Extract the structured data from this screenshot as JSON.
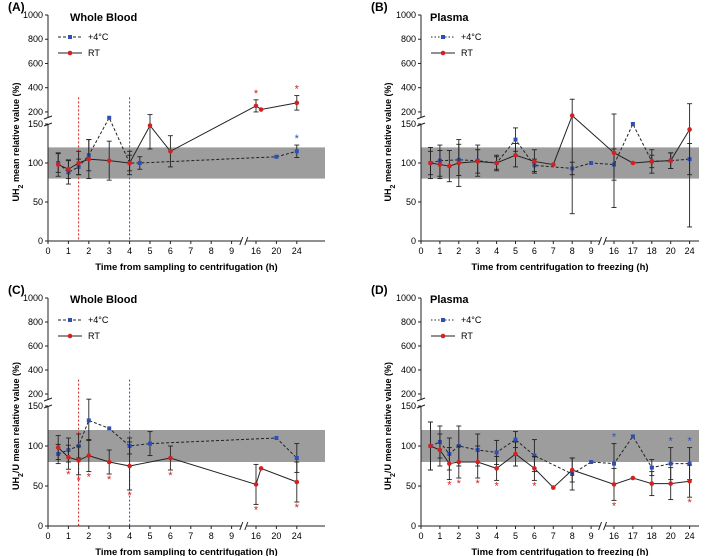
{
  "colors": {
    "blue": "#2f4fb5",
    "red": "#d42020",
    "band": "#9d9d9d",
    "line": "#222222"
  },
  "chart_data": [
    {
      "panel": "(A)",
      "title": "Whole Blood",
      "type": "line",
      "ylabel_main": "UH",
      "ylabel_sub": "2",
      "ylabel_rest": " mean relative value (%)",
      "xlabel": "Time from sampling to centrifugation (h)",
      "yticks_low": [
        "0",
        "50",
        "100",
        "150"
      ],
      "yticks_high": [
        "200",
        "400",
        "600",
        "800",
        "1000"
      ],
      "xticks": [
        "0",
        "1",
        "2",
        "3",
        "4",
        "5",
        "6",
        "7",
        "8",
        "9",
        "16",
        "20",
        "24"
      ],
      "legend": [
        "+4°C",
        "RT"
      ],
      "legend_style": "dash",
      "ylim": [
        0,
        1000
      ],
      "break_lower": 150,
      "band": [
        80,
        120
      ],
      "vlines": [
        {
          "x": 1.5,
          "color": "red"
        },
        {
          "x": 4,
          "color": "blue"
        }
      ],
      "series": [
        {
          "name": "+4°C",
          "color": "blue",
          "dash": true,
          "x": [
            0.5,
            1,
            1.5,
            2,
            3,
            4,
            4.5,
            20,
            24
          ],
          "y": [
            100,
            88,
            95,
            110,
            152,
            100,
            100,
            108,
            115
          ],
          "err": [
            12,
            15,
            10,
            20,
            0,
            10,
            8,
            0,
            8
          ],
          "stars": [
            false,
            false,
            false,
            false,
            false,
            false,
            false,
            false,
            true
          ]
        },
        {
          "name": "RT",
          "color": "red",
          "dash": false,
          "x": [
            0.5,
            1,
            1.5,
            2,
            3,
            4,
            5,
            6,
            16,
            17,
            24
          ],
          "y": [
            98,
            92,
            100,
            105,
            103,
            100,
            148,
            115,
            250,
            220,
            275
          ],
          "err": [
            15,
            12,
            15,
            25,
            25,
            15,
            30,
            20,
            50,
            0,
            60
          ],
          "stars": [
            false,
            false,
            false,
            false,
            false,
            false,
            false,
            false,
            true,
            false,
            true
          ]
        }
      ]
    },
    {
      "panel": "(B)",
      "title": "Plasma",
      "type": "line",
      "ylabel_main": "UH",
      "ylabel_sub": "2",
      "ylabel_rest": " mean relative value (%)",
      "xlabel": "Time from centrifugation to freezing (h)",
      "yticks_low": [
        "0",
        "50",
        "100",
        "150"
      ],
      "yticks_high": [
        "200",
        "400",
        "600",
        "800",
        "1000"
      ],
      "xticks": [
        "0",
        "1",
        "2",
        "3",
        "4",
        "5",
        "6",
        "7",
        "8",
        "9",
        "16",
        "17",
        "18",
        "20",
        "24"
      ],
      "legend": [
        "+4°C",
        "RT"
      ],
      "legend_style": "dot",
      "ylim": [
        0,
        1000
      ],
      "break_lower": 150,
      "band": [
        80,
        120
      ],
      "vlines": [],
      "series": [
        {
          "name": "+4°C",
          "color": "blue",
          "dash": true,
          "x": [
            0.5,
            1,
            2,
            3,
            4,
            5,
            6,
            8,
            9,
            16,
            17,
            18,
            20,
            24
          ],
          "y": [
            100,
            103,
            104,
            103,
            100,
            130,
            97,
            93,
            100,
            98,
            150,
            102,
            103,
            105
          ],
          "err": [
            20,
            20,
            20,
            20,
            8,
            15,
            8,
            8,
            0,
            20,
            0,
            8,
            10,
            20
          ],
          "stars": [
            false,
            false,
            false,
            false,
            false,
            false,
            false,
            false,
            false,
            false,
            false,
            false,
            false,
            false
          ]
        },
        {
          "name": "RT",
          "color": "red",
          "dash": false,
          "x": [
            0.5,
            1,
            1.5,
            2,
            3,
            4,
            5,
            6,
            7,
            8,
            16,
            17,
            18,
            20,
            24
          ],
          "y": [
            100,
            98,
            96,
            100,
            102,
            100,
            110,
            102,
            98,
            170,
            113,
            100,
            102,
            103,
            143
          ],
          "err": [
            15,
            18,
            20,
            30,
            15,
            10,
            15,
            15,
            0,
            135,
            70,
            0,
            15,
            10,
            125
          ],
          "stars": [
            false,
            false,
            false,
            false,
            false,
            false,
            false,
            false,
            false,
            false,
            false,
            false,
            false,
            false,
            false
          ]
        }
      ]
    },
    {
      "panel": "(C)",
      "title": "Whole Blood",
      "type": "line",
      "ylabel_main": "UH",
      "ylabel_sub": "2",
      "ylabel_rest": "/U mean relative value (%)",
      "xlabel": "Time from sampling to centrifugation (h)",
      "yticks_low": [
        "0",
        "50",
        "100",
        "150"
      ],
      "yticks_high": [
        "200",
        "400",
        "600",
        "800",
        "1000"
      ],
      "xticks": [
        "0",
        "1",
        "2",
        "3",
        "4",
        "5",
        "6",
        "7",
        "8",
        "9",
        "16",
        "20",
        "24"
      ],
      "legend": [
        "+4°C",
        "RT"
      ],
      "legend_style": "dash",
      "ylim": [
        0,
        1000
      ],
      "break_lower": 150,
      "band": [
        80,
        120
      ],
      "vlines": [
        {
          "x": 1.5,
          "color": "red"
        },
        {
          "x": 4,
          "color": "blue"
        }
      ],
      "series": [
        {
          "name": "+4°C",
          "color": "blue",
          "dash": true,
          "x": [
            0.5,
            1,
            1.5,
            2,
            3,
            4,
            5,
            20,
            24
          ],
          "y": [
            90,
            95,
            100,
            132,
            122,
            100,
            103,
            110,
            85
          ],
          "err": [
            12,
            15,
            15,
            25,
            0,
            10,
            15,
            0,
            18
          ],
          "stars": [
            false,
            false,
            false,
            false,
            false,
            false,
            false,
            false,
            false
          ]
        },
        {
          "name": "RT",
          "color": "red",
          "dash": false,
          "x": [
            0.5,
            1,
            1.5,
            2,
            3,
            4,
            6,
            16,
            17,
            24
          ],
          "y": [
            98,
            86,
            82,
            88,
            80,
            75,
            85,
            52,
            72,
            55
          ],
          "err": [
            15,
            15,
            18,
            20,
            15,
            30,
            15,
            25,
            0,
            25
          ],
          "stars": [
            false,
            true,
            true,
            true,
            true,
            true,
            true,
            true,
            false,
            true
          ]
        }
      ]
    },
    {
      "panel": "(D)",
      "title": "Plasma",
      "type": "line",
      "ylabel_main": "UH",
      "ylabel_sub": "2",
      "ylabel_rest": "/U mean relative value (%)",
      "xlabel": "Time from centrifugation to freezing (h)",
      "yticks_low": [
        "0",
        "50",
        "100",
        "150"
      ],
      "yticks_high": [
        "200",
        "400",
        "600",
        "800",
        "1000"
      ],
      "xticks": [
        "0",
        "1",
        "2",
        "3",
        "4",
        "5",
        "6",
        "7",
        "8",
        "9",
        "16",
        "17",
        "18",
        "20",
        "24"
      ],
      "legend": [
        "+4°C",
        "RT"
      ],
      "legend_style": "dot",
      "ylim": [
        0,
        1000
      ],
      "break_lower": 150,
      "band": [
        80,
        120
      ],
      "vlines": [],
      "series": [
        {
          "name": "+4°C",
          "color": "blue",
          "dash": true,
          "x": [
            0.5,
            1,
            1.5,
            2,
            3,
            4,
            5,
            6,
            8,
            9,
            16,
            17,
            18,
            20,
            24
          ],
          "y": [
            100,
            105,
            90,
            100,
            95,
            92,
            108,
            88,
            65,
            80,
            78,
            112,
            73,
            78,
            78
          ],
          "err": [
            30,
            20,
            20,
            25,
            20,
            15,
            10,
            20,
            20,
            0,
            25,
            0,
            10,
            20,
            20
          ],
          "stars": [
            false,
            false,
            false,
            false,
            false,
            false,
            false,
            false,
            false,
            false,
            true,
            false,
            false,
            true,
            true
          ]
        },
        {
          "name": "RT",
          "color": "red",
          "dash": false,
          "x": [
            0.5,
            1,
            1.5,
            2,
            3,
            4,
            5,
            6,
            7,
            8,
            16,
            17,
            18,
            20,
            24
          ],
          "y": [
            100,
            95,
            78,
            80,
            80,
            72,
            90,
            72,
            48,
            70,
            52,
            60,
            53,
            53,
            56
          ],
          "err": [
            30,
            20,
            20,
            20,
            20,
            15,
            15,
            15,
            0,
            15,
            20,
            0,
            15,
            20,
            20
          ],
          "stars": [
            false,
            false,
            true,
            true,
            true,
            true,
            false,
            true,
            false,
            false,
            true,
            false,
            false,
            false,
            true
          ]
        }
      ]
    }
  ]
}
